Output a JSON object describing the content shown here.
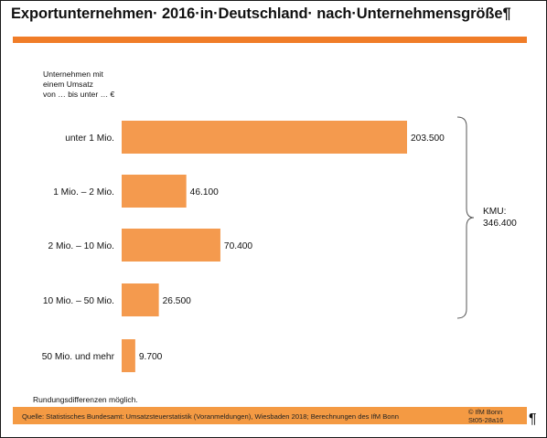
{
  "header": {
    "title": "Exportunternehmen· 2016·in·Deutschland· nach·Unternehmensgröße¶"
  },
  "chart_data": {
    "type": "bar",
    "orientation": "horizontal",
    "title": "Exportunternehmen· 2016·in·Deutschland· nach·Unternehmensgröße¶",
    "category_axis_label": [
      "Unternehmen mit",
      "einem Umsatz",
      "von … bis unter … €"
    ],
    "categories": [
      "unter 1 Mio.",
      "1 Mio. – 2 Mio.",
      "2 Mio. – 10 Mio.",
      "10 Mio. – 50 Mio.",
      "50 Mio. und mehr"
    ],
    "values": [
      203500,
      46100,
      70400,
      26500,
      9700
    ],
    "value_labels": [
      "203.500",
      "46.100",
      "70.400",
      "26.500",
      "9.700"
    ],
    "bar_color": "#f49a4e",
    "grid": false,
    "legend": "none",
    "annotation": {
      "label": "KMU:",
      "value": "346.400",
      "spans_categories": [
        0,
        3
      ]
    }
  },
  "footer": {
    "note": "Rundungsdifferenzen möglich.",
    "source": "Quelle: Statistisches Bundesamt: Umsatzsteuerstatistik (Voranmeldungen), Wiesbaden 2018; Berechnungen des IfM Bonn",
    "copyright": "© IfM Bonn",
    "code": "St05-28a16",
    "pilcrow": "¶"
  },
  "colors": {
    "accent": "#f07d28",
    "source_bar": "#f49a43"
  }
}
